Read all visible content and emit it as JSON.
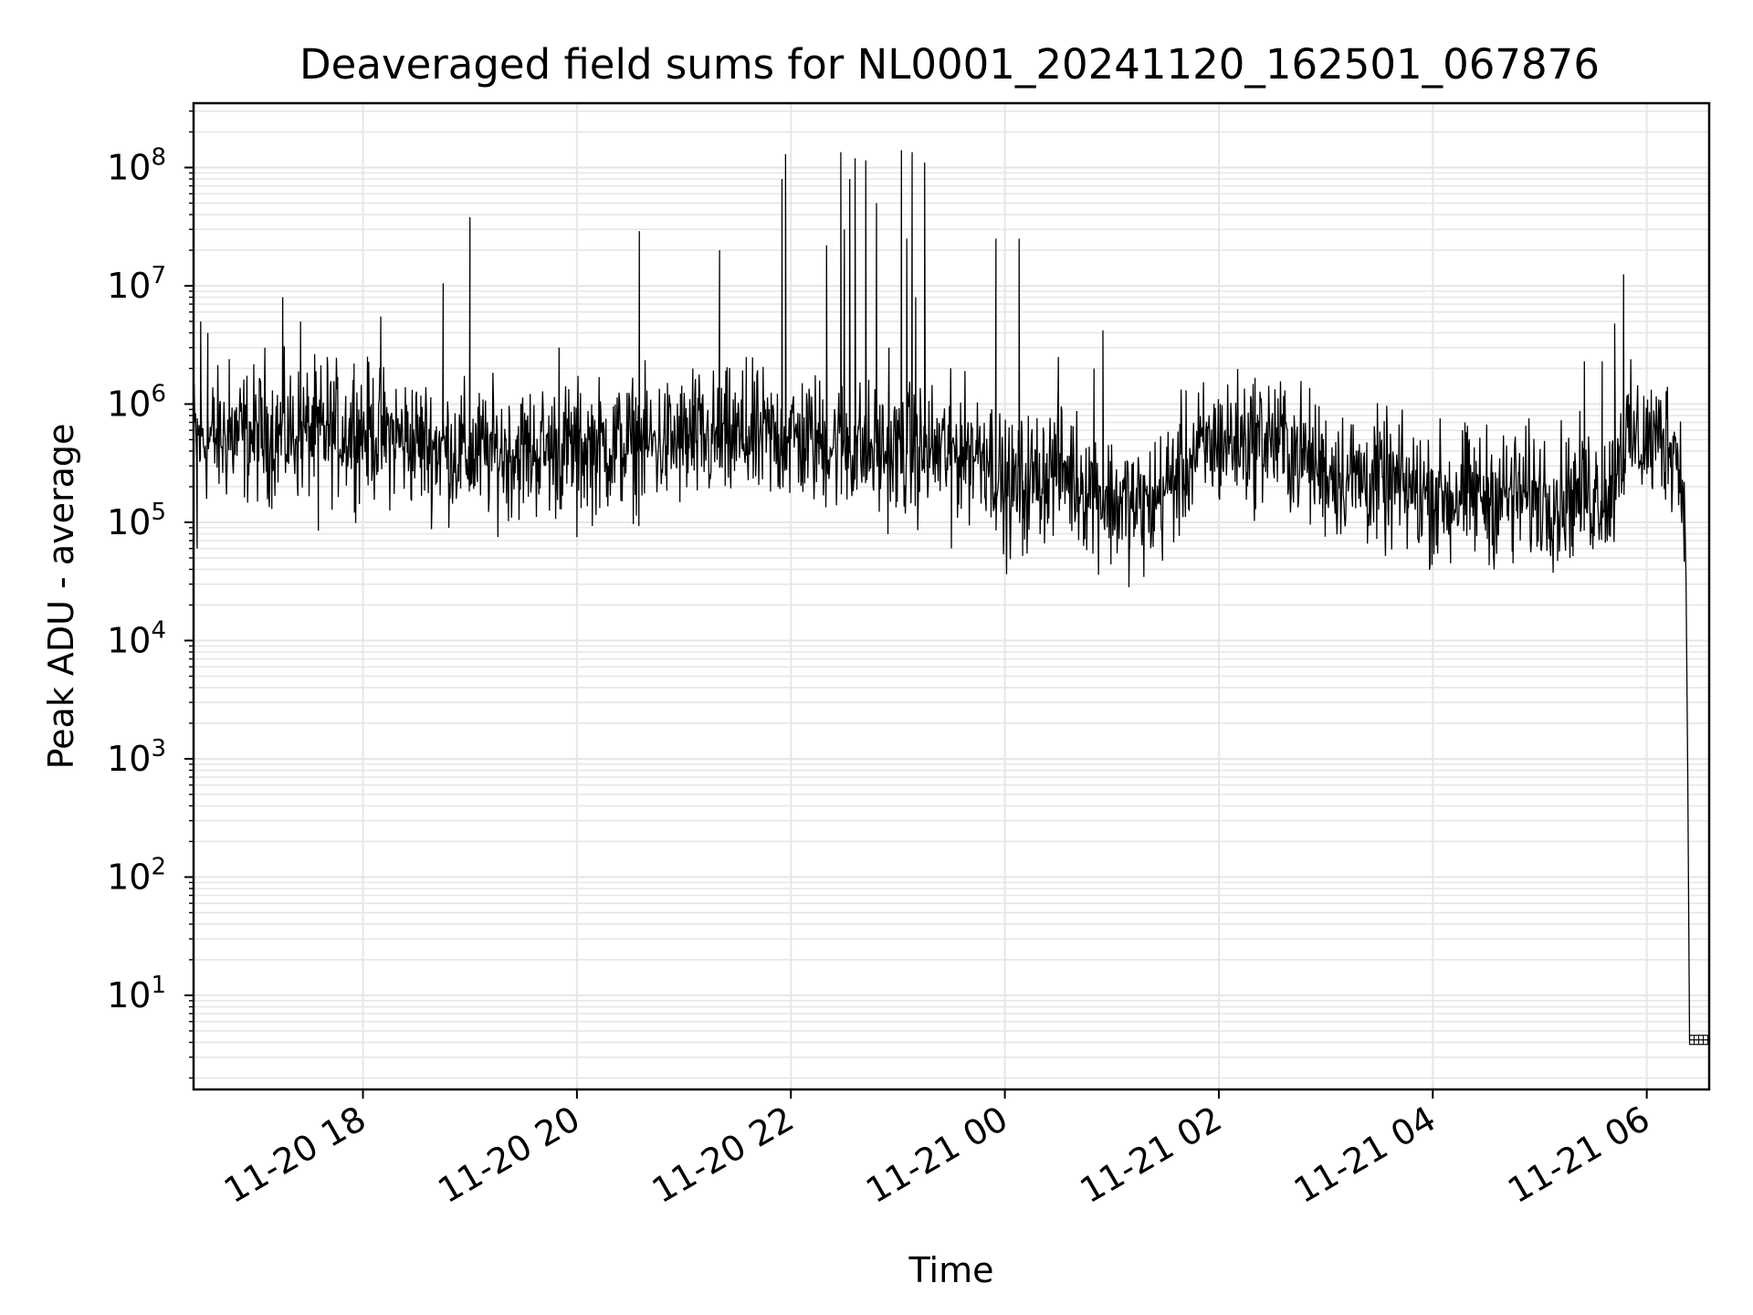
{
  "chart_data": {
    "type": "line",
    "title": "Deaveraged field sums for NL0001_20241120_162501_067876",
    "xlabel": "Time",
    "ylabel": "Peak ADU - average",
    "yscale": "log",
    "grid": true,
    "legend": "none",
    "line_color": "#000000",
    "grid_color": "#e6e6e6",
    "xlim": [
      "2024-11-20 16:25",
      "2024-11-21 06:35"
    ],
    "ylim": [
      1.6,
      350000000.0
    ],
    "x_ticks": [
      {
        "t": "2024-11-20 18:00",
        "label": "11-20 18"
      },
      {
        "t": "2024-11-20 20:00",
        "label": "11-20 20"
      },
      {
        "t": "2024-11-20 22:00",
        "label": "11-20 22"
      },
      {
        "t": "2024-11-21 00:00",
        "label": "11-21 00"
      },
      {
        "t": "2024-11-21 02:00",
        "label": "11-21 02"
      },
      {
        "t": "2024-11-21 04:00",
        "label": "11-21 04"
      },
      {
        "t": "2024-11-21 06:00",
        "label": "11-21 06"
      }
    ],
    "y_ticks": [
      {
        "value": 10,
        "base": "10",
        "exp": "1"
      },
      {
        "value": 100,
        "base": "10",
        "exp": "2"
      },
      {
        "value": 1000,
        "base": "10",
        "exp": "3"
      },
      {
        "value": 10000,
        "base": "10",
        "exp": "4"
      },
      {
        "value": 100000,
        "base": "10",
        "exp": "5"
      },
      {
        "value": 1000000,
        "base": "10",
        "exp": "6"
      },
      {
        "value": 10000000,
        "base": "10",
        "exp": "7"
      },
      {
        "value": 100000000,
        "base": "10",
        "exp": "8"
      }
    ],
    "series": [
      {
        "baseline": [
          [
            "2024-11-20 16:25",
            500000
          ],
          [
            "2024-11-20 17:00",
            550000
          ],
          [
            "2024-11-20 18:00",
            600000
          ],
          [
            "2024-11-20 19:00",
            380000
          ],
          [
            "2024-11-20 20:00",
            420000
          ],
          [
            "2024-11-20 21:00",
            480000
          ],
          [
            "2024-11-20 22:00",
            520000
          ],
          [
            "2024-11-20 23:00",
            380000
          ],
          [
            "2024-11-20 23:50",
            420000
          ],
          [
            "2024-11-21 00:00",
            180000
          ],
          [
            "2024-11-21 00:30",
            300000
          ],
          [
            "2024-11-21 01:00",
            150000
          ],
          [
            "2024-11-21 01:20",
            130000
          ],
          [
            "2024-11-21 01:45",
            350000
          ],
          [
            "2024-11-21 02:00",
            480000
          ],
          [
            "2024-11-21 02:30",
            520000
          ],
          [
            "2024-11-21 03:00",
            280000
          ],
          [
            "2024-11-21 04:00",
            170000
          ],
          [
            "2024-11-21 05:00",
            170000
          ],
          [
            "2024-11-21 05:40",
            180000
          ],
          [
            "2024-11-21 05:45",
            480000
          ],
          [
            "2024-11-21 06:15",
            500000
          ],
          [
            "2024-11-21 06:20",
            220000
          ]
        ],
        "spikes": [
          [
            "2024-11-20 16:29",
            5000000
          ],
          [
            "2024-11-20 16:33",
            4000000
          ],
          [
            "2024-11-20 16:45",
            2400000
          ],
          [
            "2024-11-20 17:05",
            3000000
          ],
          [
            "2024-11-20 17:15",
            8000000
          ],
          [
            "2024-11-20 17:25",
            5000000
          ],
          [
            "2024-11-20 17:40",
            2500000
          ],
          [
            "2024-11-20 17:55",
            2200000
          ],
          [
            "2024-11-20 18:10",
            5500000
          ],
          [
            "2024-11-20 18:45",
            10500000
          ],
          [
            "2024-11-20 19:00",
            38000000
          ],
          [
            "2024-11-20 19:50",
            3000000
          ],
          [
            "2024-11-20 20:35",
            29000000
          ],
          [
            "2024-11-20 21:05",
            2000000
          ],
          [
            "2024-11-20 21:20",
            20000000
          ],
          [
            "2024-11-20 21:35",
            2500000
          ],
          [
            "2024-11-20 21:55",
            80000000
          ],
          [
            "2024-11-20 21:57",
            130000000
          ],
          [
            "2024-11-20 22:20",
            22000000
          ],
          [
            "2024-11-20 22:28",
            135000000
          ],
          [
            "2024-11-20 22:30",
            30000000
          ],
          [
            "2024-11-20 22:33",
            80000000
          ],
          [
            "2024-11-20 22:36",
            120000000
          ],
          [
            "2024-11-20 22:42",
            115000000
          ],
          [
            "2024-11-20 22:48",
            50000000
          ],
          [
            "2024-11-20 22:55",
            3000000
          ],
          [
            "2024-11-20 23:02",
            140000000
          ],
          [
            "2024-11-20 23:05",
            25000000
          ],
          [
            "2024-11-20 23:08",
            135000000
          ],
          [
            "2024-11-20 23:10",
            8000000
          ],
          [
            "2024-11-20 23:15",
            110000000
          ],
          [
            "2024-11-20 23:55",
            25000000
          ],
          [
            "2024-11-21 00:08",
            25000000
          ],
          [
            "2024-11-21 00:30",
            2500000
          ],
          [
            "2024-11-21 00:50",
            2000000
          ],
          [
            "2024-11-21 00:55",
            4200000
          ],
          [
            "2024-11-21 05:25",
            2300000
          ],
          [
            "2024-11-21 05:35",
            2300000
          ],
          [
            "2024-11-21 05:42",
            4800000
          ],
          [
            "2024-11-21 05:47",
            12500000
          ]
        ],
        "dips": [
          [
            "2024-11-20 16:27",
            60000
          ],
          [
            "2024-11-20 17:35",
            85000
          ],
          [
            "2024-11-20 20:00",
            75000
          ],
          [
            "2024-11-20 23:30",
            60000
          ],
          [
            "2024-11-21 00:10",
            52000
          ],
          [
            "2024-11-21 01:10",
            60000
          ],
          [
            "2024-11-21 04:10",
            45000
          ],
          [
            "2024-11-21 04:45",
            45000
          ],
          [
            "2024-11-21 05:10",
            47000
          ]
        ],
        "falloff": [
          [
            "2024-11-21 06:21",
            220000
          ],
          [
            "2024-11-21 06:22",
            35000
          ],
          [
            "2024-11-21 06:23",
            700
          ],
          [
            "2024-11-21 06:24",
            4.2
          ],
          [
            "2024-11-21 06:35",
            4.2
          ]
        ]
      }
    ]
  }
}
